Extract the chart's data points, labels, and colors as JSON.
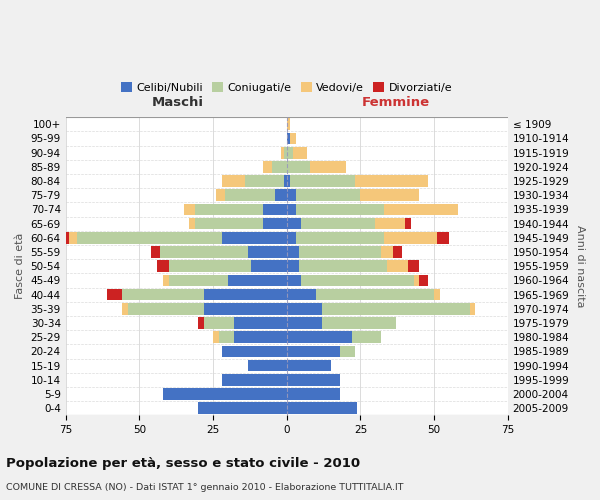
{
  "age_groups": [
    "0-4",
    "5-9",
    "10-14",
    "15-19",
    "20-24",
    "25-29",
    "30-34",
    "35-39",
    "40-44",
    "45-49",
    "50-54",
    "55-59",
    "60-64",
    "65-69",
    "70-74",
    "75-79",
    "80-84",
    "85-89",
    "90-94",
    "95-99",
    "100+"
  ],
  "birth_years": [
    "2005-2009",
    "2000-2004",
    "1995-1999",
    "1990-1994",
    "1985-1989",
    "1980-1984",
    "1975-1979",
    "1970-1974",
    "1965-1969",
    "1960-1964",
    "1955-1959",
    "1950-1954",
    "1945-1949",
    "1940-1944",
    "1935-1939",
    "1930-1934",
    "1925-1929",
    "1920-1924",
    "1915-1919",
    "1910-1914",
    "≤ 1909"
  ],
  "colors": {
    "celibi": "#4472c4",
    "coniugati": "#b8cfa0",
    "vedovi": "#f5c77a",
    "divorziati": "#cc2222"
  },
  "maschi": {
    "celibi": [
      30,
      42,
      22,
      13,
      22,
      18,
      18,
      28,
      28,
      20,
      12,
      13,
      22,
      8,
      8,
      4,
      1,
      0,
      0,
      0,
      0
    ],
    "coniugati": [
      0,
      0,
      0,
      0,
      0,
      5,
      10,
      26,
      28,
      20,
      28,
      30,
      49,
      23,
      23,
      17,
      13,
      5,
      1,
      0,
      0
    ],
    "vedovi": [
      0,
      0,
      0,
      0,
      0,
      2,
      0,
      2,
      0,
      2,
      0,
      0,
      3,
      2,
      4,
      3,
      8,
      3,
      1,
      0,
      0
    ],
    "divorziati": [
      0,
      0,
      0,
      0,
      0,
      0,
      2,
      0,
      5,
      0,
      4,
      3,
      4,
      0,
      0,
      0,
      0,
      0,
      0,
      0,
      0
    ]
  },
  "femmine": {
    "celibi": [
      24,
      18,
      18,
      15,
      18,
      22,
      12,
      12,
      10,
      5,
      4,
      4,
      3,
      5,
      3,
      3,
      1,
      0,
      0,
      1,
      0
    ],
    "coniugati": [
      0,
      0,
      0,
      0,
      5,
      10,
      25,
      50,
      40,
      38,
      30,
      28,
      30,
      25,
      30,
      22,
      22,
      8,
      2,
      0,
      0
    ],
    "vedovi": [
      0,
      0,
      0,
      0,
      0,
      0,
      0,
      2,
      2,
      2,
      7,
      4,
      18,
      10,
      25,
      20,
      25,
      12,
      5,
      2,
      1
    ],
    "divorziati": [
      0,
      0,
      0,
      0,
      0,
      0,
      0,
      0,
      0,
      3,
      4,
      3,
      4,
      2,
      0,
      0,
      0,
      0,
      0,
      0,
      0
    ]
  },
  "title": "Popolazione per età, sesso e stato civile - 2010",
  "subtitle": "COMUNE DI CRESSA (NO) - Dati ISTAT 1° gennaio 2010 - Elaborazione TUTTITALIA.IT",
  "ylabel_left": "Fasce di età",
  "ylabel_right": "Anni di nascita",
  "xlabel_left": "Maschi",
  "xlabel_right": "Femmine",
  "xlim": 75,
  "bg_color": "#f0f0f0",
  "plot_bg": "#ffffff",
  "grid_color": "#cccccc"
}
